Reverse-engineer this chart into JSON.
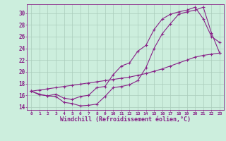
{
  "background_color": "#cceedd",
  "grid_color": "#aaccbb",
  "line_color": "#882288",
  "xlabel": "Windchill (Refroidissement éolien,°C)",
  "ylim": [
    13.5,
    31.5
  ],
  "xlim": [
    -0.5,
    23.5
  ],
  "yticks": [
    14,
    16,
    18,
    20,
    22,
    24,
    26,
    28,
    30
  ],
  "xticks": [
    0,
    1,
    2,
    3,
    4,
    5,
    6,
    7,
    8,
    9,
    10,
    11,
    12,
    13,
    14,
    15,
    16,
    17,
    18,
    19,
    20,
    21,
    22,
    23
  ],
  "curve1_x": [
    0,
    1,
    2,
    3,
    4,
    5,
    6,
    7,
    8,
    9,
    10,
    11,
    12,
    13,
    14,
    15,
    16,
    17,
    18,
    19,
    20,
    21,
    22,
    23
  ],
  "curve1_y": [
    16.7,
    16.2,
    15.9,
    15.8,
    14.8,
    14.6,
    14.2,
    14.3,
    14.5,
    15.8,
    17.3,
    17.5,
    17.8,
    18.5,
    20.7,
    24.0,
    26.5,
    28.2,
    29.8,
    30.2,
    30.5,
    31.0,
    26.6,
    23.2
  ],
  "curve2_x": [
    0,
    1,
    2,
    3,
    4,
    5,
    6,
    7,
    8,
    9,
    10,
    11,
    12,
    13,
    14,
    15,
    16,
    17,
    18,
    19,
    20,
    21,
    22,
    23
  ],
  "curve2_y": [
    16.7,
    16.1,
    15.9,
    16.2,
    15.5,
    15.3,
    15.8,
    16.0,
    17.3,
    17.5,
    19.5,
    21.0,
    21.5,
    23.5,
    24.5,
    27.2,
    29.0,
    29.8,
    30.2,
    30.5,
    31.0,
    29.0,
    26.0,
    25.0
  ],
  "curve3_x": [
    0,
    1,
    2,
    3,
    4,
    5,
    6,
    7,
    8,
    9,
    10,
    11,
    12,
    13,
    14,
    15,
    16,
    17,
    18,
    19,
    20,
    21,
    22,
    23
  ],
  "curve3_y": [
    16.7,
    16.9,
    17.1,
    17.3,
    17.5,
    17.7,
    17.9,
    18.1,
    18.3,
    18.5,
    18.7,
    18.9,
    19.1,
    19.4,
    19.7,
    20.1,
    20.5,
    21.0,
    21.5,
    22.0,
    22.5,
    22.8,
    23.0,
    23.2
  ]
}
